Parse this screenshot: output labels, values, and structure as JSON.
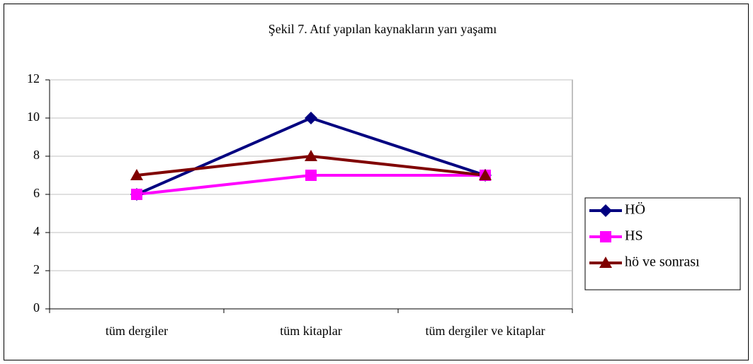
{
  "chart_data": {
    "type": "line",
    "title": "Şekil 7. Atıf yapılan kaynakların yarı yaşamı",
    "categories": [
      "tüm dergiler",
      "tüm kitaplar",
      "tüm dergiler ve kitaplar"
    ],
    "series": [
      {
        "name": "HÖ",
        "color": "#000080",
        "marker": "diamond",
        "values": [
          6,
          10,
          7
        ]
      },
      {
        "name": "HS",
        "color": "#ff00ff",
        "marker": "square",
        "values": [
          6,
          7,
          7
        ]
      },
      {
        "name": "hö ve sonrası",
        "color": "#800000",
        "marker": "triangle",
        "values": [
          7,
          8,
          7
        ]
      }
    ],
    "ylim": [
      0,
      12
    ],
    "yticks": [
      0,
      2,
      4,
      6,
      8,
      10,
      12
    ],
    "grid": true,
    "legend": "right"
  }
}
